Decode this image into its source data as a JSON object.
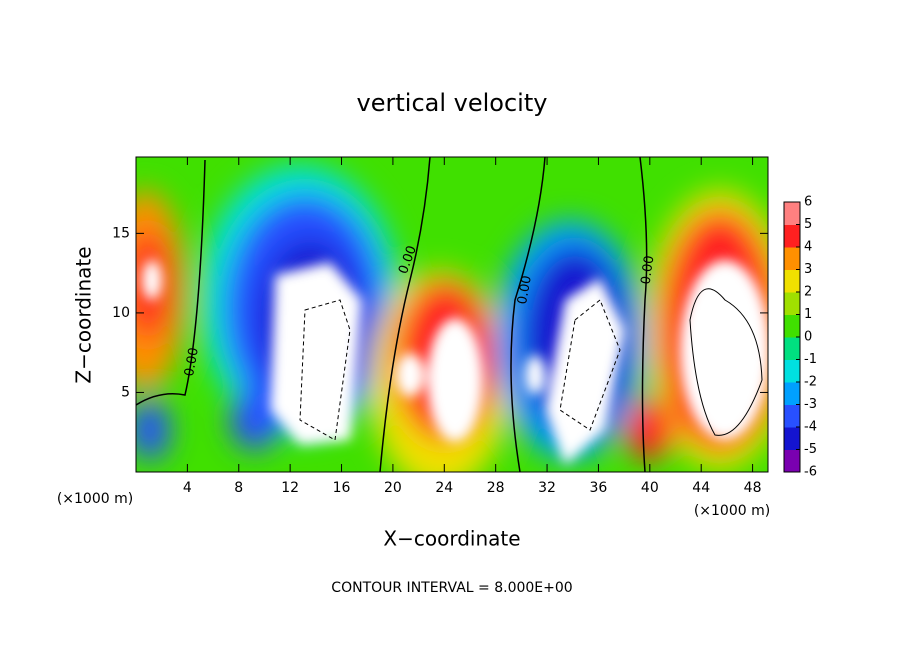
{
  "chart_data": {
    "type": "contour",
    "title": "vertical velocity",
    "xlabel": "X−coordinate",
    "ylabel": "Z−coordinate",
    "x_unit": "(×1000 m)",
    "xlim": [
      0,
      49.2
    ],
    "xticks": [
      4,
      8,
      12,
      16,
      20,
      24,
      28,
      32,
      36,
      40,
      44,
      48
    ],
    "ylim": [
      0,
      19.8
    ],
    "yticks": [
      5,
      10,
      15
    ],
    "contour_labels": [
      "0.00",
      "0.00",
      "0.00",
      "0.00"
    ],
    "colorbar": {
      "lim": [
        -6,
        6
      ],
      "ticks": [
        6,
        5,
        4,
        3,
        2,
        1,
        0,
        -1,
        -2,
        -3,
        -4,
        -5,
        -6
      ],
      "colors": [
        "#7a00b0",
        "#1414d0",
        "#2850ff",
        "#00a0ff",
        "#00e0e0",
        "#00e080",
        "#40e000",
        "#a0e000",
        "#f0e000",
        "#ff9000",
        "#ff2020",
        "#ff8080"
      ]
    },
    "footnote": "CONTOUR INTERVAL = 8.000E+00"
  }
}
